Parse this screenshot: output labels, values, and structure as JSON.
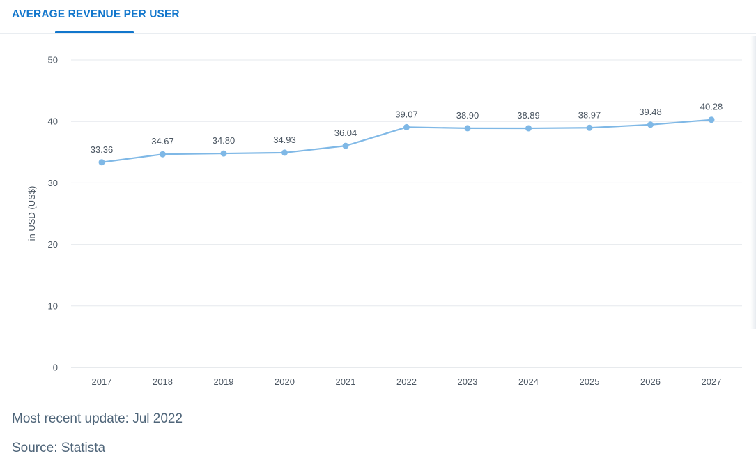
{
  "header": {
    "tab_label": "AVERAGE REVENUE PER USER"
  },
  "colors": {
    "accent": "#1176cc",
    "line": "#7fb8e6",
    "grid": "#e6e9ed",
    "axis_text": "#4a5561",
    "footer_text": "#4f6579"
  },
  "chart_data": {
    "type": "line",
    "title": "",
    "xlabel": "",
    "ylabel": "in USD (US$)",
    "categories": [
      "2017",
      "2018",
      "2019",
      "2020",
      "2021",
      "2022",
      "2023",
      "2024",
      "2025",
      "2026",
      "2027"
    ],
    "series": [
      {
        "values": [
          33.36,
          34.67,
          34.8,
          34.93,
          36.04,
          39.07,
          38.9,
          38.89,
          38.97,
          39.48,
          40.28
        ],
        "labels": [
          "33.36",
          "34.67",
          "34.80",
          "34.93",
          "36.04",
          "39.07",
          "38.90",
          "38.89",
          "38.97",
          "39.48",
          "40.28"
        ]
      }
    ],
    "ylim": [
      0,
      50
    ],
    "yticks": [
      0,
      10,
      20,
      30,
      40,
      50
    ],
    "grid": true,
    "legend": "none"
  },
  "footer": {
    "update": "Most recent update: Jul 2022",
    "source": "Source: Statista"
  }
}
